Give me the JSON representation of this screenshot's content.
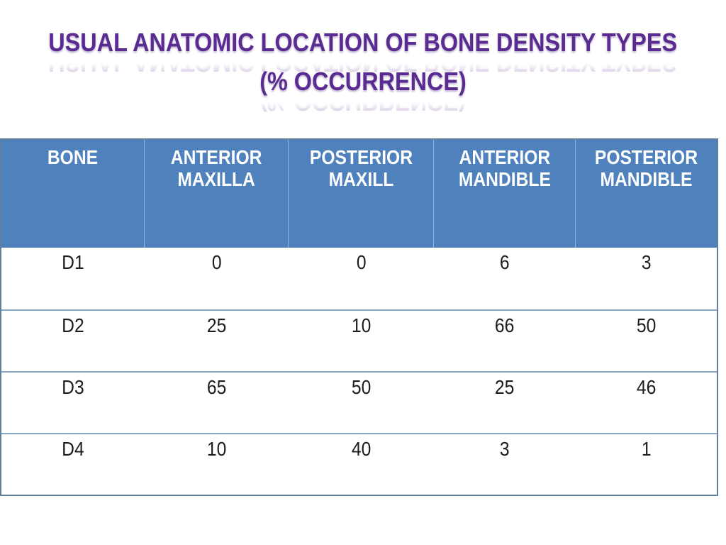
{
  "theme": {
    "title_color": "#5a2b91",
    "header_fill": "#4f81bd",
    "header_text_color": "#ffffff",
    "border_color": "#5f7f9d",
    "separator_color": "#8aa5c3",
    "cell_text_color": "#1c1c1c"
  },
  "title": {
    "line1": "USUAL ANATOMIC LOCATION OF BONE DENSITY TYPES",
    "line2": "(% OCCURRENCE)"
  },
  "table": {
    "headers": [
      {
        "line1": "BONE",
        "line2": ""
      },
      {
        "line1": "ANTERIOR",
        "line2": "MAXILLA"
      },
      {
        "line1": "POSTERIOR",
        "line2": "MAXILL"
      },
      {
        "line1": "ANTERIOR",
        "line2": "MANDIBLE"
      },
      {
        "line1": "POSTERIOR",
        "line2": "MANDIBLE"
      }
    ],
    "rows": [
      {
        "label": "D1",
        "values": [
          "0",
          "0",
          "6",
          "3"
        ]
      },
      {
        "label": "D2",
        "values": [
          "25",
          "10",
          "66",
          "50"
        ]
      },
      {
        "label": "D3",
        "values": [
          "65",
          "50",
          "25",
          "46"
        ]
      },
      {
        "label": "D4",
        "values": [
          "10",
          "40",
          "3",
          "1"
        ]
      }
    ]
  }
}
